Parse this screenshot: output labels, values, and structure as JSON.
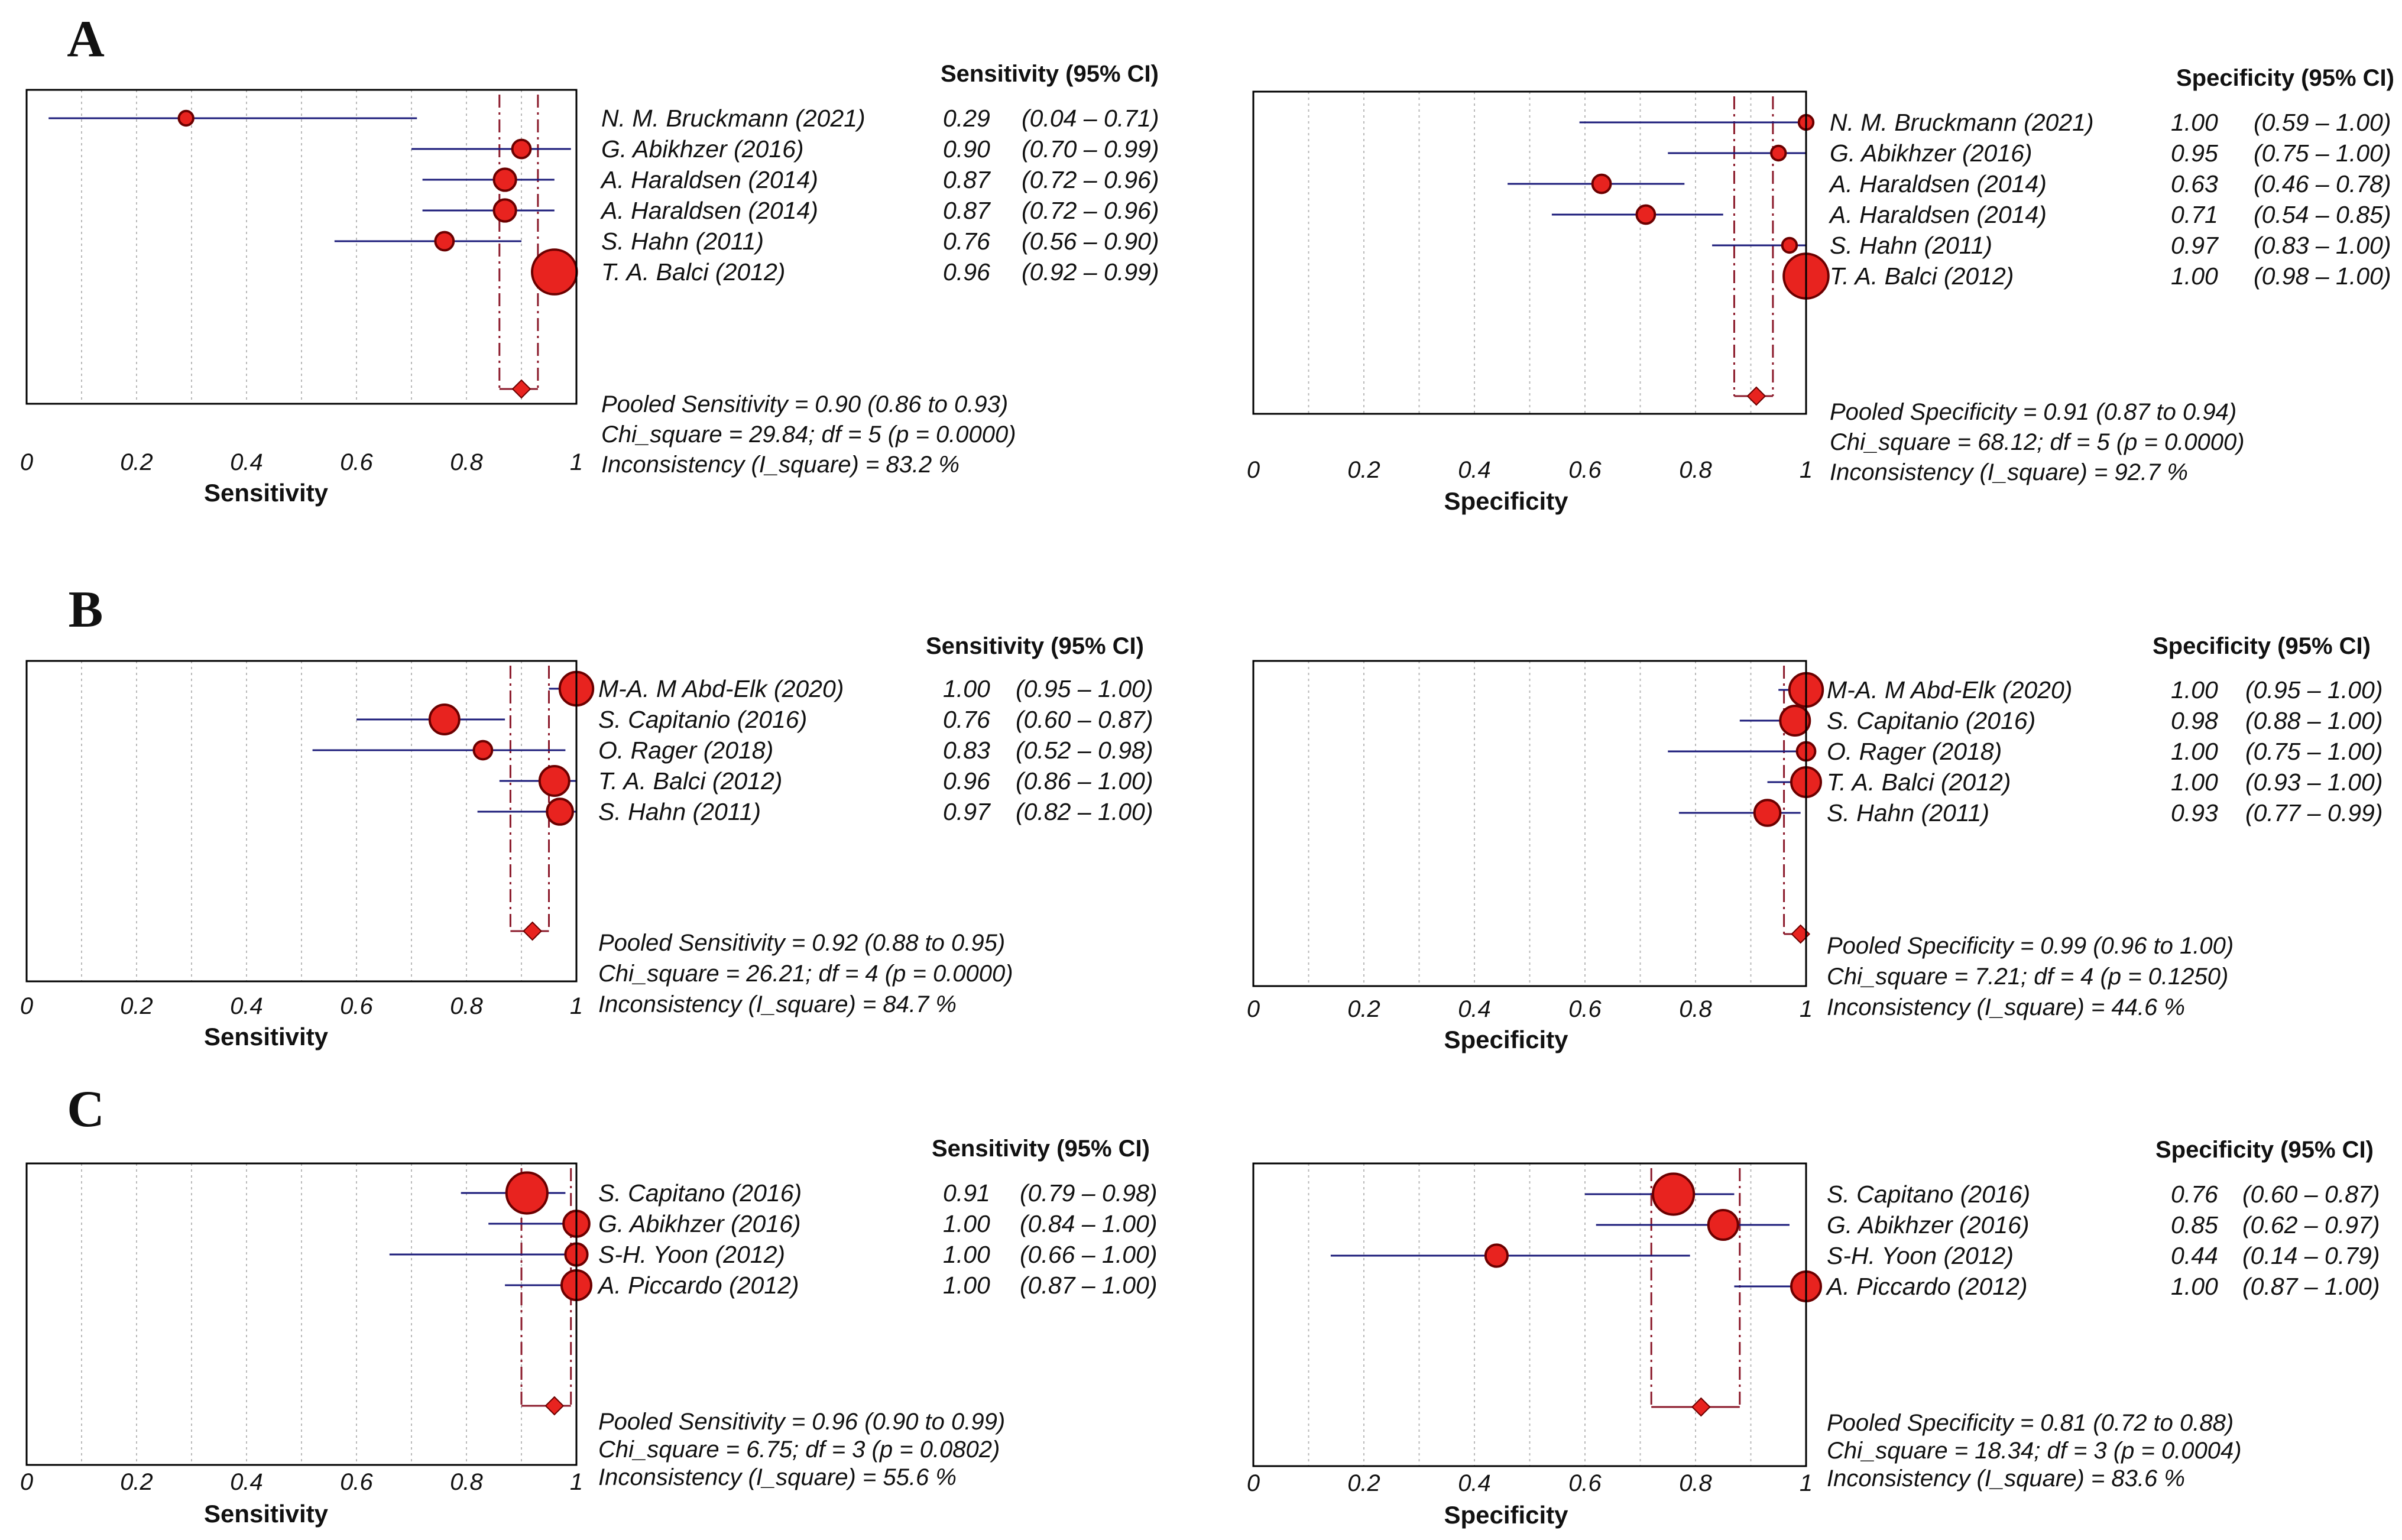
{
  "chart_data": [
    {
      "panel": "A",
      "type": "forest",
      "metric": "Sensitivity",
      "header": "Sensitivity (95% CI)",
      "xlabel": "Sensitivity",
      "ticks": [
        "0",
        "0.2",
        "0.4",
        "0.6",
        "0.8",
        "1"
      ],
      "xlim": [
        0,
        1
      ],
      "studies": [
        {
          "name": "N. M. Bruckmann (2021)",
          "est": 0.29,
          "lo": 0.04,
          "hi": 0.71,
          "label_est": "0.29",
          "label_ci": "(0.04 – 0.71)",
          "w": 1
        },
        {
          "name": "G. Abikhzer (2016)",
          "est": 0.9,
          "lo": 0.7,
          "hi": 0.99,
          "label_est": "0.90",
          "label_ci": "(0.70 – 0.99)",
          "w": 2
        },
        {
          "name": "A. Haraldsen (2014)",
          "est": 0.87,
          "lo": 0.72,
          "hi": 0.96,
          "label_est": "0.87",
          "label_ci": "(0.72 – 0.96)",
          "w": 3
        },
        {
          "name": "A. Haraldsen (2014)",
          "est": 0.87,
          "lo": 0.72,
          "hi": 0.96,
          "label_est": "0.87",
          "label_ci": "(0.72 – 0.96)",
          "w": 3
        },
        {
          "name": "S. Hahn (2011)",
          "est": 0.76,
          "lo": 0.56,
          "hi": 0.9,
          "label_est": "0.76",
          "label_ci": "(0.56 – 0.90)",
          "w": 2
        },
        {
          "name": "T. A. Balci (2012)",
          "est": 0.96,
          "lo": 0.92,
          "hi": 0.99,
          "label_est": "0.96",
          "label_ci": "(0.92 – 0.99)",
          "w": 9
        }
      ],
      "pooled": {
        "est": 0.9,
        "lo": 0.86,
        "hi": 0.93
      },
      "stats": [
        "Pooled Sensitivity = 0.90 (0.86 to 0.93)",
        "Chi_square = 29.84; df = 5 (p = 0.0000)",
        "Inconsistency (I_square) = 83.2 %"
      ]
    },
    {
      "panel": "",
      "type": "forest",
      "metric": "Specificity",
      "header": "Specificity (95% CI)",
      "xlabel": "Specificity",
      "ticks": [
        "0",
        "0.2",
        "0.4",
        "0.6",
        "0.8",
        "1"
      ],
      "xlim": [
        0,
        1
      ],
      "studies": [
        {
          "name": "N. M. Bruckmann (2021)",
          "est": 1.0,
          "lo": 0.59,
          "hi": 1.0,
          "label_est": "1.00",
          "label_ci": "(0.59 – 1.00)",
          "w": 1
        },
        {
          "name": "G. Abikhzer (2016)",
          "est": 0.95,
          "lo": 0.75,
          "hi": 1.0,
          "label_est": "0.95",
          "label_ci": "(0.75 – 1.00)",
          "w": 1
        },
        {
          "name": "A. Haraldsen (2014)",
          "est": 0.63,
          "lo": 0.46,
          "hi": 0.78,
          "label_est": "0.63",
          "label_ci": "(0.46 – 0.78)",
          "w": 2
        },
        {
          "name": "A. Haraldsen (2014)",
          "est": 0.71,
          "lo": 0.54,
          "hi": 0.85,
          "label_est": "0.71",
          "label_ci": "(0.54 – 0.85)",
          "w": 2
        },
        {
          "name": "S. Hahn (2011)",
          "est": 0.97,
          "lo": 0.83,
          "hi": 1.0,
          "label_est": "0.97",
          "label_ci": "(0.83 – 1.00)",
          "w": 1
        },
        {
          "name": "T. A. Balci (2012)",
          "est": 1.0,
          "lo": 0.98,
          "hi": 1.0,
          "label_est": "1.00",
          "label_ci": "(0.98 – 1.00)",
          "w": 9
        }
      ],
      "pooled": {
        "est": 0.91,
        "lo": 0.87,
        "hi": 0.94
      },
      "stats": [
        "Pooled Specificity = 0.91 (0.87 to 0.94)",
        "Chi_square = 68.12; df = 5 (p = 0.0000)",
        "Inconsistency (I_square) = 92.7 %"
      ]
    },
    {
      "panel": "B",
      "type": "forest",
      "metric": "Sensitivity",
      "header": "Sensitivity (95% CI)",
      "xlabel": "Sensitivity",
      "ticks": [
        "0",
        "0.2",
        "0.4",
        "0.6",
        "0.8",
        "1"
      ],
      "xlim": [
        0,
        1
      ],
      "studies": [
        {
          "name": "M-A. M Abd-Elk (2020)",
          "est": 1.0,
          "lo": 0.95,
          "hi": 1.0,
          "label_est": "1.00",
          "label_ci": "(0.95 – 1.00)",
          "w": 6
        },
        {
          "name": "S. Capitanio (2016)",
          "est": 0.76,
          "lo": 0.6,
          "hi": 0.87,
          "label_est": "0.76",
          "label_ci": "(0.60 – 0.87)",
          "w": 5
        },
        {
          "name": "O. Rager (2018)",
          "est": 0.83,
          "lo": 0.52,
          "hi": 0.98,
          "label_est": "0.83",
          "label_ci": "(0.52 – 0.98)",
          "w": 2
        },
        {
          "name": "T. A. Balci (2012)",
          "est": 0.96,
          "lo": 0.86,
          "hi": 1.0,
          "label_est": "0.96",
          "label_ci": "(0.86 – 1.00)",
          "w": 5
        },
        {
          "name": "S. Hahn (2011)",
          "est": 0.97,
          "lo": 0.82,
          "hi": 1.0,
          "label_est": "0.97",
          "label_ci": "(0.82 – 1.00)",
          "w": 4
        }
      ],
      "pooled": {
        "est": 0.92,
        "lo": 0.88,
        "hi": 0.95
      },
      "stats": [
        "Pooled Sensitivity = 0.92 (0.88 to 0.95)",
        "Chi_square = 26.21; df = 4 (p = 0.0000)",
        "Inconsistency (I_square) = 84.7 %"
      ]
    },
    {
      "panel": "",
      "type": "forest",
      "metric": "Specificity",
      "header": "Specificity (95% CI)",
      "xlabel": "Specificity",
      "ticks": [
        "0",
        "0.2",
        "0.4",
        "0.6",
        "0.8",
        "1"
      ],
      "xlim": [
        0,
        1
      ],
      "studies": [
        {
          "name": "M-A. M Abd-Elk (2020)",
          "est": 1.0,
          "lo": 0.95,
          "hi": 1.0,
          "label_est": "1.00",
          "label_ci": "(0.95 – 1.00)",
          "w": 6
        },
        {
          "name": "S. Capitanio (2016)",
          "est": 0.98,
          "lo": 0.88,
          "hi": 1.0,
          "label_est": "0.98",
          "label_ci": "(0.88 – 1.00)",
          "w": 5
        },
        {
          "name": "O. Rager (2018)",
          "est": 1.0,
          "lo": 0.75,
          "hi": 1.0,
          "label_est": "1.00",
          "label_ci": "(0.75 – 1.00)",
          "w": 2
        },
        {
          "name": "T. A. Balci (2012)",
          "est": 1.0,
          "lo": 0.93,
          "hi": 1.0,
          "label_est": "1.00",
          "label_ci": "(0.93 – 1.00)",
          "w": 5
        },
        {
          "name": "S. Hahn (2011)",
          "est": 0.93,
          "lo": 0.77,
          "hi": 0.99,
          "label_est": "0.93",
          "label_ci": "(0.77 – 0.99)",
          "w": 4
        }
      ],
      "pooled": {
        "est": 0.99,
        "lo": 0.96,
        "hi": 1.0
      },
      "stats": [
        "Pooled Specificity = 0.99 (0.96 to 1.00)",
        "Chi_square = 7.21; df = 4 (p = 0.1250)",
        "Inconsistency (I_square) = 44.6 %"
      ]
    },
    {
      "panel": "C",
      "type": "forest",
      "metric": "Sensitivity",
      "header": "Sensitivity (95% CI)",
      "xlabel": "Sensitivity",
      "ticks": [
        "0",
        "0.2",
        "0.4",
        "0.6",
        "0.8",
        "1"
      ],
      "xlim": [
        0,
        1
      ],
      "studies": [
        {
          "name": "S. Capitano (2016)",
          "est": 0.91,
          "lo": 0.79,
          "hi": 0.98,
          "label_est": "0.91",
          "label_ci": "(0.79 – 0.98)",
          "w": 8
        },
        {
          "name": "G. Abikhzer (2016)",
          "est": 1.0,
          "lo": 0.84,
          "hi": 1.0,
          "label_est": "1.00",
          "label_ci": "(0.84 – 1.00)",
          "w": 4
        },
        {
          "name": "S-H. Yoon (2012)",
          "est": 1.0,
          "lo": 0.66,
          "hi": 1.0,
          "label_est": "1.00",
          "label_ci": "(0.66 – 1.00)",
          "w": 3
        },
        {
          "name": "A. Piccardo (2012)",
          "est": 1.0,
          "lo": 0.87,
          "hi": 1.0,
          "label_est": "1.00",
          "label_ci": "(0.87 – 1.00)",
          "w": 5
        }
      ],
      "pooled": {
        "est": 0.96,
        "lo": 0.9,
        "hi": 0.99
      },
      "stats": [
        "Pooled Sensitivity = 0.96 (0.90 to 0.99)",
        "Chi_square = 6.75; df = 3 (p = 0.0802)",
        "Inconsistency (I_square) = 55.6 %"
      ]
    },
    {
      "panel": "",
      "type": "forest",
      "metric": "Specificity",
      "header": "Specificity (95% CI)",
      "xlabel": "Specificity",
      "ticks": [
        "0",
        "0.2",
        "0.4",
        "0.6",
        "0.8",
        "1"
      ],
      "xlim": [
        0,
        1
      ],
      "studies": [
        {
          "name": "S. Capitano (2016)",
          "est": 0.76,
          "lo": 0.6,
          "hi": 0.87,
          "label_est": "0.76",
          "label_ci": "(0.60 – 0.87)",
          "w": 8
        },
        {
          "name": "G. Abikhzer (2016)",
          "est": 0.85,
          "lo": 0.62,
          "hi": 0.97,
          "label_est": "0.85",
          "label_ci": "(0.62 – 0.97)",
          "w": 5
        },
        {
          "name": "S-H. Yoon (2012)",
          "est": 0.44,
          "lo": 0.14,
          "hi": 0.79,
          "label_est": "0.44",
          "label_ci": "(0.14 – 0.79)",
          "w": 3
        },
        {
          "name": "A. Piccardo (2012)",
          "est": 1.0,
          "lo": 0.87,
          "hi": 1.0,
          "label_est": "1.00",
          "label_ci": "(0.87 – 1.00)",
          "w": 5
        }
      ],
      "pooled": {
        "est": 0.81,
        "lo": 0.72,
        "hi": 0.88
      },
      "stats": [
        "Pooled Specificity = 0.81 (0.72 to 0.88)",
        "Chi_square = 18.34; df = 3 (p = 0.0004)",
        "Inconsistency (I_square) = 83.6 %"
      ]
    }
  ],
  "colors": {
    "marker_fill": "#e8231f",
    "marker_stroke": "#6b0000",
    "ci_line": "#1b1b7a",
    "pooled_line": "#8b1a2b",
    "grid": "#b8b8b8",
    "frame": "#000000"
  }
}
